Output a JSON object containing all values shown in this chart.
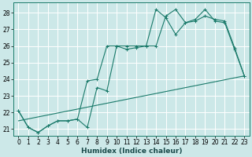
{
  "xlabel": "Humidex (Indice chaleur)",
  "xlim": [
    -0.5,
    23.5
  ],
  "ylim": [
    20.6,
    28.6
  ],
  "yticks": [
    21,
    22,
    23,
    24,
    25,
    26,
    27,
    28
  ],
  "xticks": [
    0,
    1,
    2,
    3,
    4,
    5,
    6,
    7,
    8,
    9,
    10,
    11,
    12,
    13,
    14,
    15,
    16,
    17,
    18,
    19,
    20,
    21,
    22,
    23
  ],
  "bg_color": "#cce8e8",
  "grid_color": "#ffffff",
  "line_color": "#1a7a6a",
  "line1_x": [
    0,
    1,
    2,
    3,
    4,
    5,
    6,
    7,
    8,
    9,
    10,
    11,
    12,
    13,
    14,
    15,
    16,
    17,
    18,
    19,
    20,
    21,
    22,
    23
  ],
  "line1_y": [
    22.1,
    21.1,
    20.8,
    21.2,
    21.5,
    21.5,
    21.6,
    21.1,
    23.5,
    23.3,
    26.0,
    25.8,
    25.9,
    26.0,
    28.2,
    27.7,
    26.7,
    27.4,
    27.5,
    27.8,
    27.6,
    27.5,
    25.9,
    24.2
  ],
  "line2_x": [
    0,
    1,
    2,
    3,
    4,
    5,
    6,
    7,
    8,
    9,
    10,
    11,
    12,
    13,
    14,
    15,
    16,
    17,
    18,
    19,
    20,
    21,
    22,
    23
  ],
  "line2_y": [
    22.1,
    21.1,
    20.8,
    21.2,
    21.5,
    21.5,
    21.6,
    23.9,
    24.0,
    26.0,
    26.0,
    26.0,
    26.0,
    26.0,
    26.0,
    27.8,
    28.2,
    27.4,
    27.6,
    28.2,
    27.5,
    27.4,
    25.8,
    24.2
  ],
  "line3_x": [
    0,
    23
  ],
  "line3_y": [
    21.5,
    24.2
  ]
}
